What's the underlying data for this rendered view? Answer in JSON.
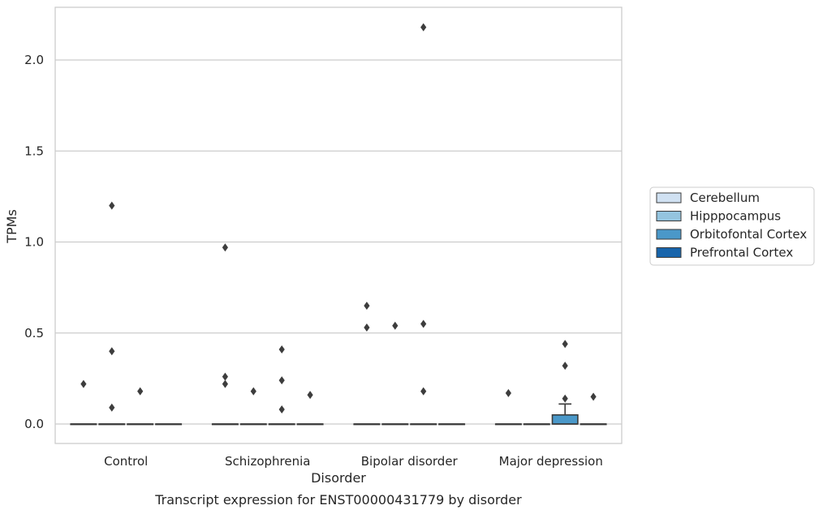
{
  "chart_data": {
    "type": "box",
    "title": "",
    "caption": "Transcript expression for ENST00000431779 by disorder",
    "xlabel": "Disorder",
    "ylabel": "TPMs",
    "categories": [
      "Control",
      "Schizophrenia",
      "Bipolar disorder",
      "Major depression"
    ],
    "ylim": [
      -0.11,
      2.29
    ],
    "yticks": [
      0.0,
      0.5,
      1.0,
      1.5,
      2.0
    ],
    "ytick_labels": [
      "0.0",
      "0.5",
      "1.0",
      "1.5",
      "2.0"
    ],
    "grid": "horizontal",
    "legend_position": "right",
    "series": [
      {
        "name": "Cerebellum",
        "color": "#d0e1f2",
        "boxes": [
          {
            "category": "Control",
            "q1": 0,
            "median": 0,
            "q3": 0,
            "whisker_low": 0,
            "whisker_high": 0,
            "outliers": [
              0.22
            ]
          },
          {
            "category": "Schizophrenia",
            "q1": 0,
            "median": 0,
            "q3": 0,
            "whisker_low": 0,
            "whisker_high": 0,
            "outliers": [
              0.26,
              0.22,
              0.97
            ]
          },
          {
            "category": "Bipolar disorder",
            "q1": 0,
            "median": 0,
            "q3": 0,
            "whisker_low": 0,
            "whisker_high": 0,
            "outliers": [
              0.65,
              0.53
            ]
          },
          {
            "category": "Major depression",
            "q1": 0,
            "median": 0,
            "q3": 0,
            "whisker_low": 0,
            "whisker_high": 0,
            "outliers": [
              0.17
            ]
          }
        ]
      },
      {
        "name": "Hipppocampus",
        "color": "#94c4df",
        "boxes": [
          {
            "category": "Control",
            "q1": 0,
            "median": 0,
            "q3": 0,
            "whisker_low": 0,
            "whisker_high": 0,
            "outliers": [
              1.2,
              0.4,
              0.09
            ]
          },
          {
            "category": "Schizophrenia",
            "q1": 0,
            "median": 0,
            "q3": 0,
            "whisker_low": 0,
            "whisker_high": 0,
            "outliers": [
              0.18
            ]
          },
          {
            "category": "Bipolar disorder",
            "q1": 0,
            "median": 0,
            "q3": 0,
            "whisker_low": 0,
            "whisker_high": 0,
            "outliers": [
              0.54
            ]
          },
          {
            "category": "Major depression",
            "q1": 0,
            "median": 0,
            "q3": 0,
            "whisker_low": 0,
            "whisker_high": 0,
            "outliers": []
          }
        ]
      },
      {
        "name": "Orbitofontal Cortex",
        "color": "#4a98c9",
        "boxes": [
          {
            "category": "Control",
            "q1": 0,
            "median": 0,
            "q3": 0,
            "whisker_low": 0,
            "whisker_high": 0,
            "outliers": [
              0.18
            ]
          },
          {
            "category": "Schizophrenia",
            "q1": 0,
            "median": 0,
            "q3": 0,
            "whisker_low": 0,
            "whisker_high": 0,
            "outliers": [
              0.41,
              0.24,
              0.08
            ]
          },
          {
            "category": "Bipolar disorder",
            "q1": 0,
            "median": 0,
            "q3": 0,
            "whisker_low": 0,
            "whisker_high": 0,
            "outliers": [
              2.18,
              0.55,
              0.18
            ]
          },
          {
            "category": "Major depression",
            "q1": 0,
            "median": 0,
            "q3": 0.05,
            "whisker_low": 0,
            "whisker_high": 0.11,
            "outliers": [
              0.44,
              0.32,
              0.14
            ]
          }
        ]
      },
      {
        "name": "Prefrontal Cortex",
        "color": "#1764ab",
        "boxes": [
          {
            "category": "Control",
            "q1": 0,
            "median": 0,
            "q3": 0,
            "whisker_low": 0,
            "whisker_high": 0,
            "outliers": []
          },
          {
            "category": "Schizophrenia",
            "q1": 0,
            "median": 0,
            "q3": 0,
            "whisker_low": 0,
            "whisker_high": 0,
            "outliers": [
              0.16
            ]
          },
          {
            "category": "Bipolar disorder",
            "q1": 0,
            "median": 0,
            "q3": 0,
            "whisker_low": 0,
            "whisker_high": 0,
            "outliers": []
          },
          {
            "category": "Major depression",
            "q1": 0,
            "median": 0,
            "q3": 0,
            "whisker_low": 0,
            "whisker_high": 0,
            "outliers": [
              0.15
            ]
          }
        ]
      }
    ]
  }
}
